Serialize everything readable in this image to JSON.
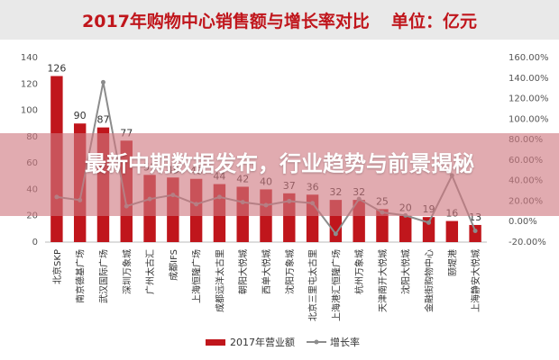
{
  "title": {
    "main": "2017年购物中心销售额与增长率对比",
    "unit": "单位：亿元"
  },
  "overlay": {
    "headline": "最新中期数据发布，行业趋势与前景揭秘"
  },
  "colors": {
    "bar": "#c0161c",
    "line": "#8c8c8c",
    "title": "#c0161c",
    "overlay": "#ce7880"
  },
  "chart_data": {
    "type": "bar",
    "title": "2017年购物中心销售额与增长率对比",
    "subtitle": "单位：亿元",
    "categories": [
      "北京SKP",
      "南京德基广场",
      "武汉国际广场",
      "深圳万象城",
      "广州太古汇",
      "成都IFS",
      "上海恒隆广场",
      "成都远洋太古里",
      "朝阳大悦城",
      "西单大悦城",
      "沈阳万象城",
      "北京三里屯太古里",
      "上海港汇恒隆广场",
      "杭州万象城",
      "天津南开大悦城",
      "沈阳大悦城",
      "金融街购物中心",
      "颐堤港",
      "上海静安大悦城"
    ],
    "series": [
      {
        "name": "2017年营业额",
        "type": "bar",
        "axis": "left",
        "values": [
          126,
          90,
          87,
          77,
          51,
          49,
          48,
          44,
          42,
          40,
          37,
          36,
          32,
          32,
          25,
          20,
          19,
          16,
          13
        ]
      },
      {
        "name": "增长率",
        "type": "line",
        "axis": "right",
        "values": [
          0.24,
          0.21,
          1.36,
          0.15,
          0.22,
          0.26,
          0.17,
          0.24,
          0.19,
          0.16,
          0.2,
          0.18,
          -0.12,
          0.22,
          0.09,
          0.06,
          -0.01,
          0.45,
          -0.09
        ]
      }
    ],
    "data_labels": [
      "126",
      "90",
      "87",
      "77",
      "51",
      "49",
      "48",
      "44",
      "42",
      "40",
      "37",
      "36",
      "32",
      "32",
      "25",
      "20",
      "19",
      "16",
      "13"
    ],
    "ylim": [
      0,
      140
    ],
    "y_ticks": [
      "0",
      "20",
      "40",
      "60",
      "80",
      "100",
      "120",
      "140"
    ],
    "y2lim": [
      -0.2,
      1.6
    ],
    "y2_ticks": [
      "-20.00%",
      "0.00%",
      "20.00%",
      "40.00%",
      "60.00%",
      "80.00%",
      "100.00%",
      "120.00%",
      "140.00%",
      "160.00%"
    ],
    "legend": {
      "placement": "bottom",
      "items": [
        "2017年营业额",
        "增长率"
      ]
    },
    "grid": false
  }
}
